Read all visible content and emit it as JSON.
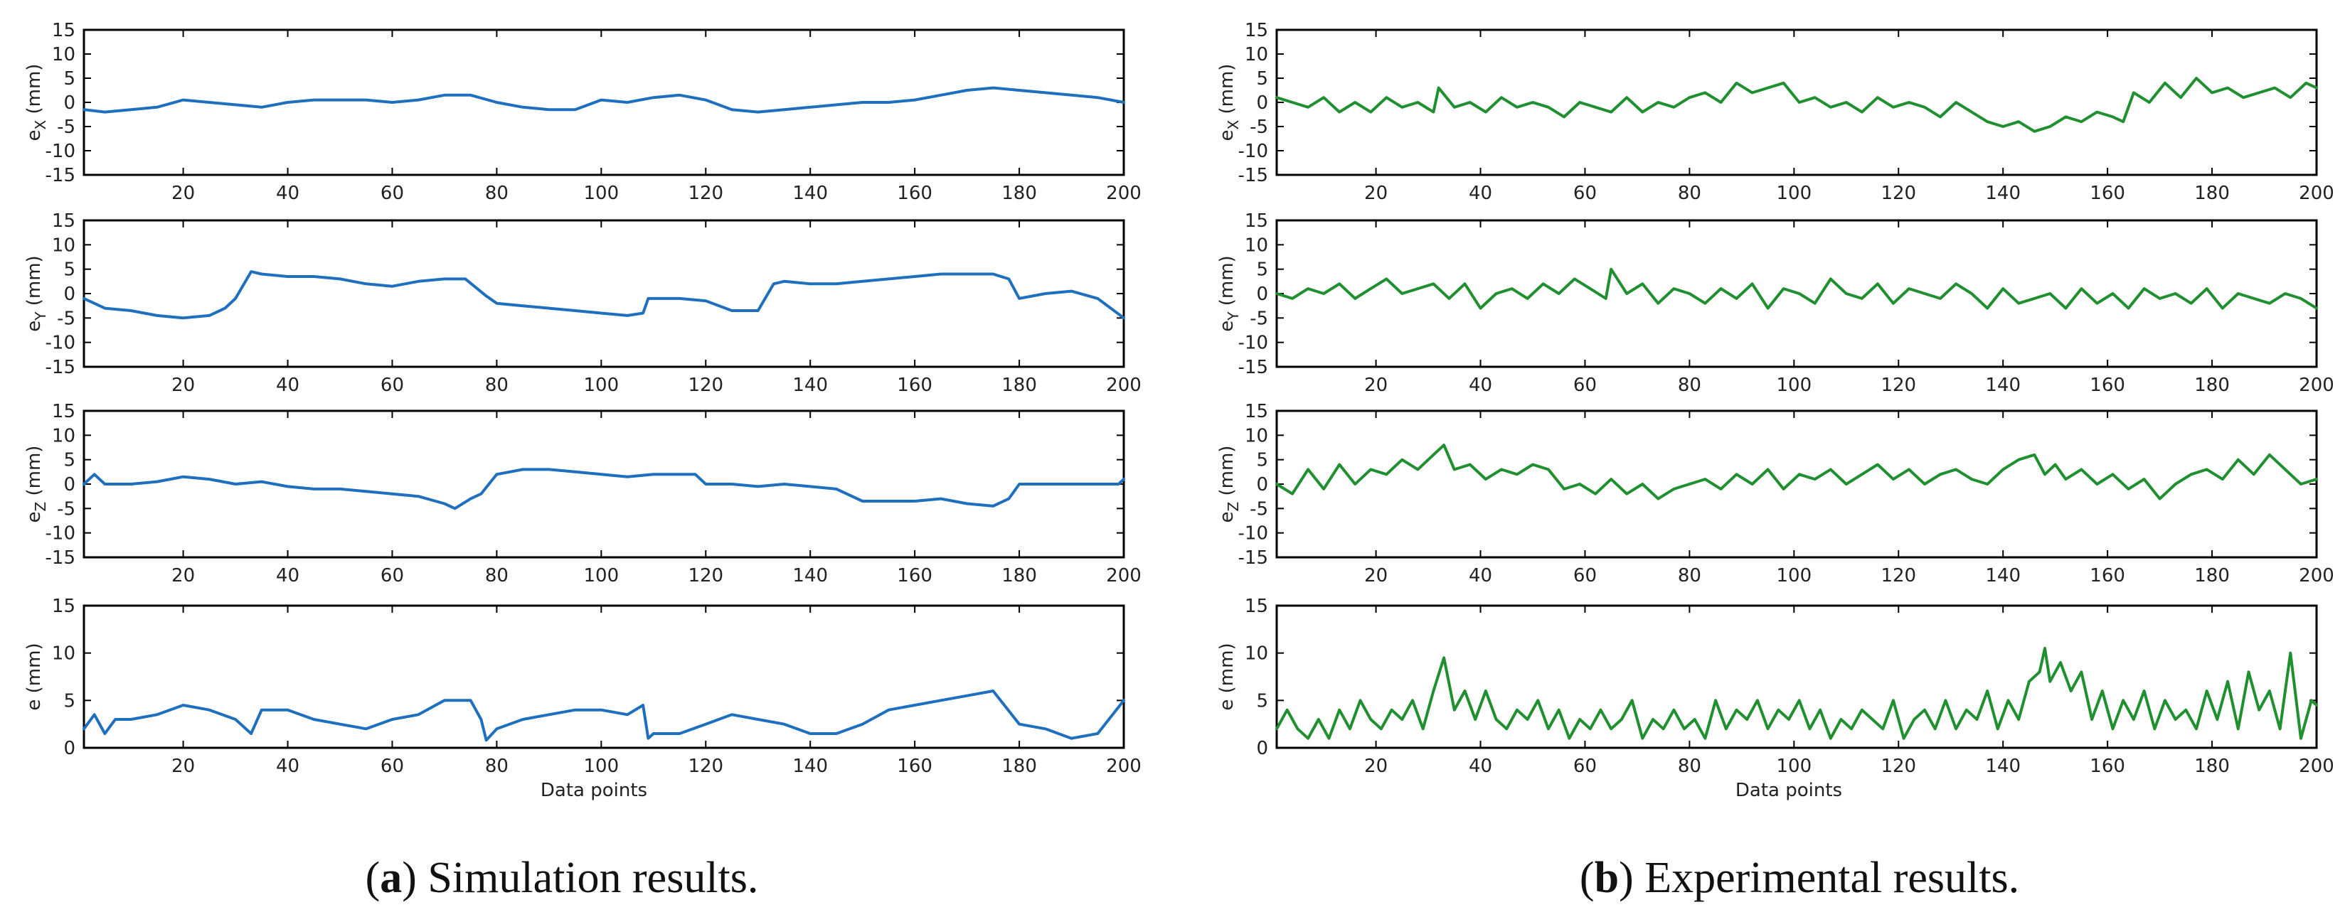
{
  "figure": {
    "panels": [
      {
        "id": "a",
        "letter": "a",
        "open_paren": "(",
        "close_paren": ")",
        "caption_text": " Simulation results.",
        "color": "#1f6fbf"
      },
      {
        "id": "b",
        "letter": "b",
        "open_paren": "(",
        "close_paren": ")",
        "caption_text": " Experimental results.",
        "color": "#1f8f2f"
      }
    ],
    "xlabel": "Data points"
  },
  "chart_data": [
    {
      "type": "line",
      "panel": "a",
      "title": "",
      "ylabel_main": "e",
      "ylabel_sub": "X",
      "ylabel_unit": " (mm)",
      "xlim": [
        1,
        200
      ],
      "ylim": [
        -15,
        15
      ],
      "xticks": [
        20,
        40,
        60,
        80,
        100,
        120,
        140,
        160,
        180,
        200
      ],
      "yticks": [
        -15,
        -10,
        -5,
        0,
        5,
        10,
        15
      ],
      "xlabel": "",
      "series_name": "Simulation e_X",
      "series_color": "#1f6fbf",
      "x": [
        1,
        5,
        10,
        15,
        20,
        25,
        30,
        35,
        40,
        45,
        50,
        55,
        60,
        65,
        70,
        75,
        80,
        85,
        90,
        95,
        100,
        105,
        110,
        115,
        120,
        125,
        130,
        135,
        140,
        145,
        150,
        155,
        160,
        165,
        170,
        175,
        180,
        185,
        190,
        195,
        200
      ],
      "y": [
        -1.5,
        -2,
        -1.5,
        -1,
        0.5,
        0,
        -0.5,
        -1,
        0,
        0.5,
        0.5,
        0.5,
        0,
        0.5,
        1.5,
        1.5,
        0,
        -1,
        -1.5,
        -1.5,
        0.5,
        0,
        1,
        1.5,
        0.5,
        -1.5,
        -2,
        -1.5,
        -1,
        -0.5,
        0,
        0,
        0.5,
        1.5,
        2.5,
        3,
        2.5,
        2,
        1.5,
        1,
        0
      ]
    },
    {
      "type": "line",
      "panel": "a",
      "title": "",
      "ylabel_main": "e",
      "ylabel_sub": "Y",
      "ylabel_unit": " (mm)",
      "xlim": [
        1,
        200
      ],
      "ylim": [
        -15,
        15
      ],
      "xticks": [
        20,
        40,
        60,
        80,
        100,
        120,
        140,
        160,
        180,
        200
      ],
      "yticks": [
        -15,
        -10,
        -5,
        0,
        5,
        10,
        15
      ],
      "xlabel": "",
      "series_name": "Simulation e_Y",
      "series_color": "#1f6fbf",
      "x": [
        1,
        5,
        10,
        15,
        20,
        25,
        28,
        30,
        33,
        35,
        40,
        45,
        50,
        55,
        60,
        65,
        70,
        74,
        78,
        80,
        85,
        90,
        95,
        100,
        105,
        108,
        109,
        110,
        115,
        120,
        125,
        130,
        133,
        135,
        140,
        145,
        150,
        155,
        160,
        165,
        170,
        174,
        175,
        178,
        180,
        185,
        190,
        195,
        200
      ],
      "y": [
        -1,
        -3,
        -3.5,
        -4.5,
        -5,
        -4.5,
        -3,
        -1,
        4.5,
        4,
        3.5,
        3.5,
        3,
        2,
        1.5,
        2.5,
        3,
        3,
        -0.5,
        -2,
        -2.5,
        -3,
        -3.5,
        -4,
        -4.5,
        -4,
        -1,
        -1,
        -1,
        -1.5,
        -3.5,
        -3.5,
        2,
        2.5,
        2,
        2,
        2.5,
        3,
        3.5,
        4,
        4,
        4,
        4,
        3,
        -1,
        0,
        0.5,
        -1,
        -5
      ]
    },
    {
      "type": "line",
      "panel": "a",
      "title": "",
      "ylabel_main": "e",
      "ylabel_sub": "Z",
      "ylabel_unit": " (mm)",
      "xlim": [
        1,
        200
      ],
      "ylim": [
        -15,
        15
      ],
      "xticks": [
        20,
        40,
        60,
        80,
        100,
        120,
        140,
        160,
        180,
        200
      ],
      "yticks": [
        -15,
        -10,
        -5,
        0,
        5,
        10,
        15
      ],
      "xlabel": "",
      "series_name": "Simulation e_Z",
      "series_color": "#1f6fbf",
      "x": [
        1,
        3,
        5,
        10,
        15,
        20,
        25,
        30,
        35,
        40,
        45,
        50,
        55,
        60,
        65,
        70,
        72,
        75,
        77,
        80,
        85,
        90,
        95,
        100,
        105,
        110,
        115,
        118,
        120,
        125,
        130,
        135,
        140,
        145,
        150,
        155,
        160,
        165,
        170,
        175,
        178,
        180,
        185,
        190,
        195,
        199,
        200
      ],
      "y": [
        0,
        2,
        0,
        0,
        0.5,
        1.5,
        1,
        0,
        0.5,
        -0.5,
        -1,
        -1,
        -1.5,
        -2,
        -2.5,
        -4,
        -5,
        -3,
        -2,
        2,
        3,
        3,
        2.5,
        2,
        1.5,
        2,
        2,
        2,
        0,
        0,
        -0.5,
        0,
        -0.5,
        -1,
        -3.5,
        -3.5,
        -3.5,
        -3,
        -4,
        -4.5,
        -3,
        0,
        0,
        0,
        0,
        0,
        1
      ]
    },
    {
      "type": "line",
      "panel": "a",
      "title": "",
      "ylabel_main": "e",
      "ylabel_sub": "",
      "ylabel_unit": " (mm)",
      "xlim": [
        1,
        200
      ],
      "ylim": [
        0,
        15
      ],
      "xticks": [
        20,
        40,
        60,
        80,
        100,
        120,
        140,
        160,
        180,
        200
      ],
      "yticks": [
        0,
        5,
        10,
        15
      ],
      "xlabel": "Data points",
      "series_name": "Simulation e",
      "series_color": "#1f6fbf",
      "x": [
        1,
        3,
        5,
        7,
        10,
        15,
        20,
        25,
        30,
        33,
        35,
        40,
        45,
        50,
        55,
        60,
        65,
        70,
        75,
        77,
        78,
        80,
        85,
        90,
        95,
        100,
        105,
        108,
        109,
        110,
        115,
        120,
        125,
        130,
        135,
        140,
        145,
        150,
        155,
        160,
        165,
        170,
        175,
        180,
        185,
        190,
        195,
        200
      ],
      "y": [
        2,
        3.5,
        1.5,
        3,
        3,
        3.5,
        4.5,
        4,
        3,
        1.5,
        4,
        4,
        3,
        2.5,
        2,
        3,
        3.5,
        5,
        5,
        3,
        0.8,
        2,
        3,
        3.5,
        4,
        4,
        3.5,
        4.5,
        1,
        1.5,
        1.5,
        2.5,
        3.5,
        3,
        2.5,
        1.5,
        1.5,
        2.5,
        4,
        4.5,
        5,
        5.5,
        6,
        2.5,
        2,
        1,
        1.5,
        5
      ]
    },
    {
      "type": "line",
      "panel": "b",
      "title": "",
      "ylabel_main": "e",
      "ylabel_sub": "X",
      "ylabel_unit": " (mm)",
      "xlim": [
        1,
        200
      ],
      "ylim": [
        -15,
        15
      ],
      "xticks": [
        20,
        40,
        60,
        80,
        100,
        120,
        140,
        160,
        180,
        200
      ],
      "yticks": [
        -15,
        -10,
        -5,
        0,
        5,
        10,
        15
      ],
      "xlabel": "",
      "series_name": "Experimental e_X",
      "series_color": "#1f8f2f",
      "x": [
        1,
        4,
        7,
        10,
        13,
        16,
        19,
        22,
        25,
        28,
        31,
        32,
        35,
        38,
        41,
        44,
        47,
        50,
        53,
        56,
        59,
        62,
        65,
        68,
        71,
        74,
        77,
        80,
        83,
        86,
        89,
        92,
        95,
        98,
        101,
        104,
        107,
        110,
        113,
        116,
        119,
        122,
        125,
        128,
        131,
        134,
        137,
        140,
        143,
        146,
        149,
        152,
        155,
        158,
        161,
        163,
        165,
        168,
        171,
        174,
        177,
        180,
        183,
        186,
        189,
        192,
        195,
        198,
        200
      ],
      "y": [
        1,
        0,
        -1,
        1,
        -2,
        0,
        -2,
        1,
        -1,
        0,
        -2,
        3,
        -1,
        0,
        -2,
        1,
        -1,
        0,
        -1,
        -3,
        0,
        -1,
        -2,
        1,
        -2,
        0,
        -1,
        1,
        2,
        0,
        4,
        2,
        3,
        4,
        0,
        1,
        -1,
        0,
        -2,
        1,
        -1,
        0,
        -1,
        -3,
        0,
        -2,
        -4,
        -5,
        -4,
        -6,
        -5,
        -3,
        -4,
        -2,
        -3,
        -4,
        2,
        0,
        4,
        1,
        5,
        2,
        3,
        1,
        2,
        3,
        1,
        4,
        3
      ]
    },
    {
      "type": "line",
      "panel": "b",
      "title": "",
      "ylabel_main": "e",
      "ylabel_sub": "Y",
      "ylabel_unit": " (mm)",
      "xlim": [
        1,
        200
      ],
      "ylim": [
        -15,
        15
      ],
      "xticks": [
        20,
        40,
        60,
        80,
        100,
        120,
        140,
        160,
        180,
        200
      ],
      "yticks": [
        -15,
        -10,
        -5,
        0,
        5,
        10,
        15
      ],
      "xlabel": "",
      "series_name": "Experimental e_Y",
      "series_color": "#1f8f2f",
      "x": [
        1,
        4,
        7,
        10,
        13,
        16,
        19,
        22,
        25,
        28,
        31,
        34,
        37,
        40,
        43,
        46,
        49,
        52,
        55,
        58,
        61,
        64,
        65,
        68,
        71,
        74,
        77,
        80,
        83,
        86,
        89,
        92,
        95,
        98,
        101,
        104,
        107,
        110,
        113,
        116,
        119,
        122,
        125,
        128,
        131,
        134,
        137,
        140,
        143,
        146,
        149,
        152,
        155,
        158,
        161,
        164,
        167,
        170,
        173,
        176,
        179,
        182,
        185,
        188,
        191,
        194,
        197,
        200
      ],
      "y": [
        0,
        -1,
        1,
        0,
        2,
        -1,
        1,
        3,
        0,
        1,
        2,
        -1,
        2,
        -3,
        0,
        1,
        -1,
        2,
        0,
        3,
        1,
        -1,
        5,
        0,
        2,
        -2,
        1,
        0,
        -2,
        1,
        -1,
        2,
        -3,
        1,
        0,
        -2,
        3,
        0,
        -1,
        2,
        -2,
        1,
        0,
        -1,
        2,
        0,
        -3,
        1,
        -2,
        -1,
        0,
        -3,
        1,
        -2,
        0,
        -3,
        1,
        -1,
        0,
        -2,
        1,
        -3,
        0,
        -1,
        -2,
        0,
        -1,
        -3
      ]
    },
    {
      "type": "line",
      "panel": "b",
      "title": "",
      "ylabel_main": "e",
      "ylabel_sub": "Z",
      "ylabel_unit": " (mm)",
      "xlim": [
        1,
        200
      ],
      "ylim": [
        -15,
        15
      ],
      "xticks": [
        20,
        40,
        60,
        80,
        100,
        120,
        140,
        160,
        180,
        200
      ],
      "yticks": [
        -15,
        -10,
        -5,
        0,
        5,
        10,
        15
      ],
      "xlabel": "",
      "series_name": "Experimental e_Z",
      "series_color": "#1f8f2f",
      "x": [
        1,
        4,
        7,
        10,
        13,
        16,
        19,
        22,
        25,
        28,
        31,
        33,
        35,
        38,
        41,
        44,
        47,
        50,
        53,
        56,
        59,
        62,
        65,
        68,
        71,
        74,
        77,
        80,
        83,
        86,
        89,
        92,
        95,
        98,
        101,
        104,
        107,
        110,
        113,
        116,
        119,
        122,
        125,
        128,
        131,
        134,
        137,
        140,
        143,
        146,
        148,
        150,
        152,
        155,
        158,
        161,
        164,
        167,
        170,
        173,
        176,
        179,
        182,
        185,
        188,
        191,
        194,
        197,
        200
      ],
      "y": [
        0,
        -2,
        3,
        -1,
        4,
        0,
        3,
        2,
        5,
        3,
        6,
        8,
        3,
        4,
        1,
        3,
        2,
        4,
        3,
        -1,
        0,
        -2,
        1,
        -2,
        0,
        -3,
        -1,
        0,
        1,
        -1,
        2,
        0,
        3,
        -1,
        2,
        1,
        3,
        0,
        2,
        4,
        1,
        3,
        0,
        2,
        3,
        1,
        0,
        3,
        5,
        6,
        2,
        4,
        1,
        3,
        0,
        2,
        -1,
        1,
        -3,
        0,
        2,
        3,
        1,
        5,
        2,
        6,
        3,
        0,
        1
      ]
    },
    {
      "type": "line",
      "panel": "b",
      "title": "",
      "ylabel_main": "e",
      "ylabel_sub": "",
      "ylabel_unit": " (mm)",
      "xlim": [
        1,
        200
      ],
      "ylim": [
        0,
        15
      ],
      "xticks": [
        20,
        40,
        60,
        80,
        100,
        120,
        140,
        160,
        180,
        200
      ],
      "yticks": [
        0,
        5,
        10,
        15
      ],
      "xlabel": "Data points",
      "series_name": "Experimental e",
      "series_color": "#1f8f2f",
      "x": [
        1,
        3,
        5,
        7,
        9,
        11,
        13,
        15,
        17,
        19,
        21,
        23,
        25,
        27,
        29,
        31,
        33,
        35,
        37,
        39,
        41,
        43,
        45,
        47,
        49,
        51,
        53,
        55,
        57,
        59,
        61,
        63,
        65,
        67,
        69,
        71,
        73,
        75,
        77,
        79,
        81,
        83,
        85,
        87,
        89,
        91,
        93,
        95,
        97,
        99,
        101,
        103,
        105,
        107,
        109,
        111,
        113,
        115,
        117,
        119,
        121,
        123,
        125,
        127,
        129,
        131,
        133,
        135,
        137,
        139,
        141,
        143,
        145,
        147,
        148,
        149,
        151,
        153,
        155,
        157,
        159,
        161,
        163,
        165,
        167,
        169,
        171,
        173,
        175,
        177,
        179,
        181,
        183,
        185,
        187,
        189,
        191,
        193,
        195,
        197,
        199,
        200
      ],
      "y": [
        2,
        4,
        2,
        1,
        3,
        1,
        4,
        2,
        5,
        3,
        2,
        4,
        3,
        5,
        2,
        6,
        9.5,
        4,
        6,
        3,
        6,
        3,
        2,
        4,
        3,
        5,
        2,
        4,
        1,
        3,
        2,
        4,
        2,
        3,
        5,
        1,
        3,
        2,
        4,
        2,
        3,
        1,
        5,
        2,
        4,
        3,
        5,
        2,
        4,
        3,
        5,
        2,
        4,
        1,
        3,
        2,
        4,
        3,
        2,
        5,
        1,
        3,
        4,
        2,
        5,
        2,
        4,
        3,
        6,
        2,
        5,
        3,
        7,
        8,
        10.5,
        7,
        9,
        6,
        8,
        3,
        6,
        2,
        5,
        3,
        6,
        2,
        5,
        3,
        4,
        2,
        6,
        3,
        7,
        2,
        8,
        4,
        6,
        2,
        10,
        1,
        5,
        4.5
      ]
    }
  ]
}
